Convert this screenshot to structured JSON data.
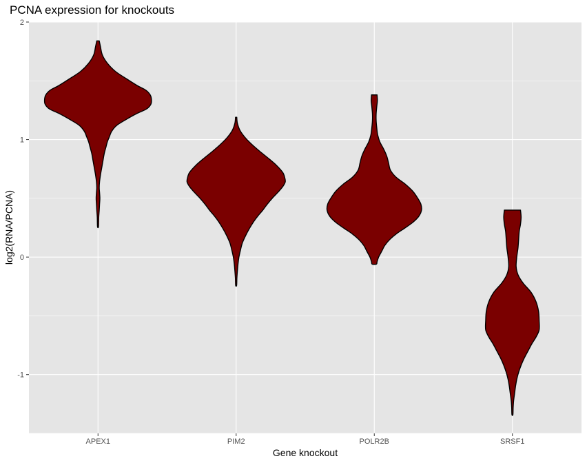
{
  "chart_data": {
    "type": "violin",
    "title": "PCNA expression for knockouts",
    "xlabel": "Gene knockout",
    "ylabel": "log2(RNA/PCNA)",
    "categories": [
      "APEX1",
      "PIM2",
      "POLR2B",
      "SRSF1"
    ],
    "ylim": [
      -1.5,
      2.0
    ],
    "yticks": [
      2,
      1,
      0,
      -1
    ],
    "ytick_labels": [
      "2",
      "1",
      "0",
      "-1"
    ],
    "grid": true,
    "legend": "none",
    "fill_color": "#7a0000",
    "outline_color": "#000000",
    "panel_color": "#e5e5e5",
    "grid_color": "#ffffff",
    "violins": [
      {
        "category": "APEX1",
        "range": [
          0.26,
          1.84
        ],
        "profile": [
          [
            1.84,
            0.02
          ],
          [
            1.79,
            0.04
          ],
          [
            1.72,
            0.07
          ],
          [
            1.65,
            0.15
          ],
          [
            1.58,
            0.28
          ],
          [
            1.52,
            0.45
          ],
          [
            1.46,
            0.63
          ],
          [
            1.42,
            0.77
          ],
          [
            1.38,
            0.84
          ],
          [
            1.34,
            0.86
          ],
          [
            1.3,
            0.85
          ],
          [
            1.26,
            0.78
          ],
          [
            1.22,
            0.62
          ],
          [
            1.17,
            0.45
          ],
          [
            1.12,
            0.3
          ],
          [
            1.07,
            0.22
          ],
          [
            1.02,
            0.18
          ],
          [
            0.98,
            0.15
          ],
          [
            0.94,
            0.13
          ],
          [
            0.88,
            0.1
          ],
          [
            0.82,
            0.08
          ],
          [
            0.76,
            0.06
          ],
          [
            0.7,
            0.04
          ],
          [
            0.64,
            0.025
          ],
          [
            0.59,
            0.02
          ],
          [
            0.55,
            0.025
          ],
          [
            0.5,
            0.03
          ],
          [
            0.45,
            0.025
          ],
          [
            0.4,
            0.02
          ],
          [
            0.34,
            0.012
          ],
          [
            0.26,
            0.008
          ]
        ]
      },
      {
        "category": "PIM2",
        "range": [
          -0.24,
          1.19
        ],
        "profile": [
          [
            1.19,
            0.01
          ],
          [
            1.14,
            0.02
          ],
          [
            1.08,
            0.06
          ],
          [
            1.02,
            0.14
          ],
          [
            0.96,
            0.25
          ],
          [
            0.9,
            0.38
          ],
          [
            0.84,
            0.52
          ],
          [
            0.78,
            0.65
          ],
          [
            0.72,
            0.75
          ],
          [
            0.68,
            0.78
          ],
          [
            0.64,
            0.79
          ],
          [
            0.6,
            0.75
          ],
          [
            0.55,
            0.67
          ],
          [
            0.5,
            0.58
          ],
          [
            0.45,
            0.5
          ],
          [
            0.4,
            0.43
          ],
          [
            0.35,
            0.35
          ],
          [
            0.3,
            0.28
          ],
          [
            0.24,
            0.21
          ],
          [
            0.18,
            0.15
          ],
          [
            0.12,
            0.1
          ],
          [
            0.06,
            0.07
          ],
          [
            0.0,
            0.045
          ],
          [
            -0.06,
            0.03
          ],
          [
            -0.12,
            0.02
          ],
          [
            -0.18,
            0.012
          ],
          [
            -0.24,
            0.008
          ]
        ]
      },
      {
        "category": "POLR2B",
        "range": [
          -0.06,
          1.38
        ],
        "profile": [
          [
            1.38,
            0.045
          ],
          [
            1.33,
            0.05
          ],
          [
            1.28,
            0.04
          ],
          [
            1.22,
            0.03
          ],
          [
            1.16,
            0.03
          ],
          [
            1.1,
            0.04
          ],
          [
            1.04,
            0.055
          ],
          [
            0.98,
            0.09
          ],
          [
            0.92,
            0.15
          ],
          [
            0.86,
            0.2
          ],
          [
            0.8,
            0.23
          ],
          [
            0.74,
            0.26
          ],
          [
            0.68,
            0.35
          ],
          [
            0.62,
            0.5
          ],
          [
            0.56,
            0.62
          ],
          [
            0.5,
            0.7
          ],
          [
            0.45,
            0.75
          ],
          [
            0.4,
            0.76
          ],
          [
            0.35,
            0.72
          ],
          [
            0.3,
            0.63
          ],
          [
            0.25,
            0.5
          ],
          [
            0.2,
            0.36
          ],
          [
            0.15,
            0.25
          ],
          [
            0.1,
            0.17
          ],
          [
            0.05,
            0.12
          ],
          [
            0.0,
            0.07
          ],
          [
            -0.04,
            0.045
          ],
          [
            -0.06,
            0.035
          ]
        ]
      },
      {
        "category": "SRSF1",
        "range": [
          -1.34,
          0.4
        ],
        "profile": [
          [
            0.4,
            0.13
          ],
          [
            0.34,
            0.14
          ],
          [
            0.28,
            0.13
          ],
          [
            0.22,
            0.11
          ],
          [
            0.15,
            0.1
          ],
          [
            0.08,
            0.09
          ],
          [
            0.0,
            0.07
          ],
          [
            -0.08,
            0.06
          ],
          [
            -0.15,
            0.09
          ],
          [
            -0.22,
            0.17
          ],
          [
            -0.3,
            0.3
          ],
          [
            -0.38,
            0.38
          ],
          [
            -0.46,
            0.42
          ],
          [
            -0.54,
            0.43
          ],
          [
            -0.62,
            0.43
          ],
          [
            -0.68,
            0.38
          ],
          [
            -0.74,
            0.31
          ],
          [
            -0.8,
            0.25
          ],
          [
            -0.86,
            0.19
          ],
          [
            -0.92,
            0.14
          ],
          [
            -0.98,
            0.1
          ],
          [
            -1.04,
            0.07
          ],
          [
            -1.1,
            0.05
          ],
          [
            -1.16,
            0.035
          ],
          [
            -1.22,
            0.02
          ],
          [
            -1.28,
            0.012
          ],
          [
            -1.34,
            0.008
          ]
        ]
      }
    ]
  }
}
